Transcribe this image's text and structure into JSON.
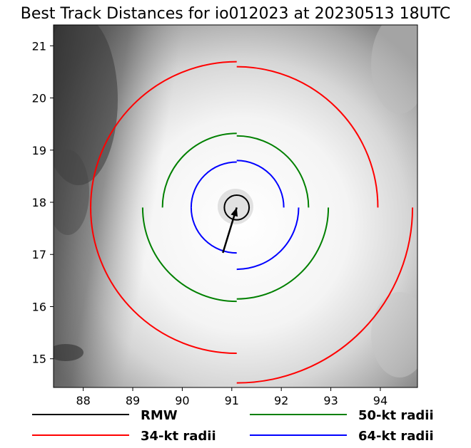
{
  "chart_data": {
    "type": "map-overlay",
    "title": "Best Track Distances for io012023 at 20230513 18UTC",
    "xlabel": "",
    "ylabel": "",
    "xlim": [
      87.4,
      94.75
    ],
    "ylim": [
      14.45,
      21.4
    ],
    "x_ticks": [
      88,
      89,
      90,
      91,
      92,
      93,
      94
    ],
    "y_ticks": [
      15,
      16,
      17,
      18,
      19,
      20,
      21
    ],
    "grid": false,
    "background": "grayscale satellite imagery of storm cloud shield",
    "center": {
      "lon": 91.1,
      "lat": 17.9
    },
    "motion_vector": {
      "from": {
        "lon": 90.82,
        "lat": 17.03
      },
      "to": {
        "lon": 91.1,
        "lat": 17.9
      }
    },
    "legend": {
      "placement": "bottom",
      "entries": [
        {
          "label": "RMW",
          "color": "#000000"
        },
        {
          "label": "50-kt radii",
          "color": "#008000"
        },
        {
          "label": "34-kt radii",
          "color": "#ff0000"
        },
        {
          "label": "64-kt radii",
          "color": "#0000ff"
        }
      ]
    },
    "series": [
      {
        "name": "RMW",
        "color": "#000000",
        "quadrant_radii_deg": {
          "NE": 0.25,
          "SE": 0.25,
          "SW": 0.25,
          "NW": 0.25
        }
      },
      {
        "name": "34-kt radii",
        "color": "#ff0000",
        "quadrant_radii_deg": {
          "NE": 2.85,
          "SE": 3.55,
          "SW": 2.95,
          "NW": 2.95
        }
      },
      {
        "name": "50-kt radii",
        "color": "#008000",
        "quadrant_radii_deg": {
          "NE": 1.45,
          "SE": 1.85,
          "SW": 1.9,
          "NW": 1.5
        }
      },
      {
        "name": "64-kt radii",
        "color": "#0000ff",
        "quadrant_radii_deg": {
          "NE": 0.95,
          "SE": 1.25,
          "SW": 0.92,
          "NW": 0.92
        }
      }
    ]
  }
}
